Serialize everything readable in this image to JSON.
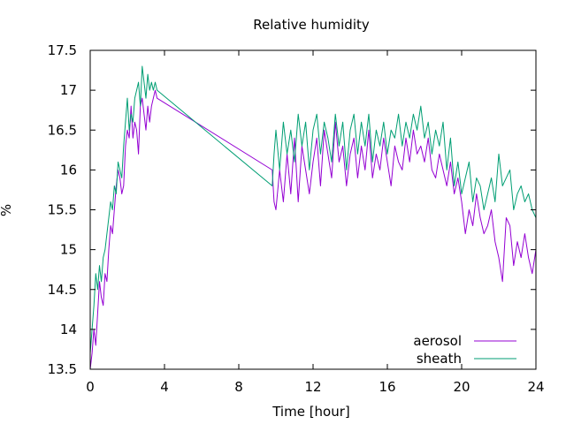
{
  "chart_data": {
    "type": "line",
    "title": "Relative humidity",
    "xlabel": "Time [hour]",
    "ylabel": "%",
    "xlim": [
      0,
      24
    ],
    "ylim": [
      13.5,
      17.5
    ],
    "xticks": [
      0,
      4,
      8,
      12,
      16,
      20,
      24
    ],
    "yticks": [
      13.5,
      14,
      14.5,
      15,
      15.5,
      16,
      16.5,
      17,
      17.5
    ],
    "xtick_labels": [
      "0",
      "4",
      "8",
      "12",
      "16",
      "20",
      "24"
    ],
    "ytick_labels": [
      "13.5",
      "14",
      "14.5",
      "15",
      "15.5",
      "16",
      "16.5",
      "17",
      "17.5"
    ],
    "grid": false,
    "legend_position": "bottom-right",
    "series": [
      {
        "name": "aerosol",
        "color": "#9400d3",
        "x": [
          0.0,
          0.1,
          0.2,
          0.3,
          0.4,
          0.5,
          0.6,
          0.7,
          0.8,
          0.9,
          1.0,
          1.1,
          1.2,
          1.3,
          1.4,
          1.5,
          1.6,
          1.7,
          1.8,
          1.9,
          2.0,
          2.1,
          2.2,
          2.3,
          2.4,
          2.5,
          2.6,
          2.7,
          2.8,
          2.9,
          3.0,
          3.1,
          3.2,
          3.3,
          3.4,
          3.5,
          3.6,
          9.8,
          9.9,
          10.0,
          10.2,
          10.4,
          10.6,
          10.8,
          11.0,
          11.2,
          11.4,
          11.6,
          11.8,
          12.0,
          12.2,
          12.4,
          12.6,
          12.8,
          13.0,
          13.2,
          13.4,
          13.6,
          13.8,
          14.0,
          14.2,
          14.4,
          14.6,
          14.8,
          15.0,
          15.2,
          15.4,
          15.6,
          15.8,
          16.0,
          16.2,
          16.4,
          16.6,
          16.8,
          17.0,
          17.2,
          17.4,
          17.6,
          17.8,
          18.0,
          18.2,
          18.4,
          18.6,
          18.8,
          19.0,
          19.2,
          19.4,
          19.6,
          19.8,
          20.0,
          20.2,
          20.4,
          20.6,
          20.8,
          21.0,
          21.2,
          21.4,
          21.6,
          21.8,
          22.0,
          22.2,
          22.4,
          22.6,
          22.8,
          23.0,
          23.2,
          23.4,
          23.6,
          23.8,
          24.0
        ],
        "y": [
          13.5,
          13.7,
          14.0,
          13.8,
          14.2,
          14.6,
          14.4,
          14.3,
          14.7,
          14.6,
          15.0,
          15.3,
          15.2,
          15.5,
          15.8,
          16.0,
          15.9,
          15.7,
          15.8,
          16.3,
          16.5,
          16.4,
          16.8,
          16.4,
          16.6,
          16.5,
          16.2,
          16.8,
          16.9,
          16.7,
          16.5,
          16.8,
          16.6,
          16.8,
          16.9,
          17.0,
          16.9,
          16.0,
          15.6,
          15.5,
          16.0,
          15.6,
          16.2,
          15.7,
          16.4,
          15.6,
          16.3,
          16.0,
          15.7,
          16.1,
          16.4,
          15.8,
          16.5,
          16.2,
          15.9,
          16.6,
          16.1,
          16.3,
          15.8,
          16.2,
          16.4,
          15.9,
          16.3,
          16.0,
          16.5,
          15.9,
          16.2,
          16.0,
          16.4,
          16.1,
          15.8,
          16.3,
          16.1,
          16.0,
          16.4,
          16.1,
          16.5,
          16.2,
          16.3,
          16.1,
          16.4,
          16.0,
          15.9,
          16.2,
          16.0,
          15.8,
          16.1,
          15.7,
          15.9,
          15.6,
          15.2,
          15.5,
          15.3,
          15.7,
          15.4,
          15.2,
          15.3,
          15.5,
          15.1,
          14.9,
          14.6,
          15.4,
          15.3,
          14.8,
          15.1,
          14.9,
          15.2,
          14.9,
          14.7,
          15.0
        ]
      },
      {
        "name": "sheath",
        "color": "#009e73",
        "x": [
          0.0,
          0.1,
          0.2,
          0.3,
          0.4,
          0.5,
          0.6,
          0.7,
          0.8,
          0.9,
          1.0,
          1.1,
          1.2,
          1.3,
          1.4,
          1.5,
          1.6,
          1.7,
          1.8,
          1.9,
          2.0,
          2.1,
          2.2,
          2.3,
          2.4,
          2.5,
          2.6,
          2.7,
          2.8,
          2.9,
          3.0,
          3.1,
          3.2,
          3.3,
          3.4,
          3.5,
          3.6,
          9.8,
          9.9,
          10.0,
          10.2,
          10.4,
          10.6,
          10.8,
          11.0,
          11.2,
          11.4,
          11.6,
          11.8,
          12.0,
          12.2,
          12.4,
          12.6,
          12.8,
          13.0,
          13.2,
          13.4,
          13.6,
          13.8,
          14.0,
          14.2,
          14.4,
          14.6,
          14.8,
          15.0,
          15.2,
          15.4,
          15.6,
          15.8,
          16.0,
          16.2,
          16.4,
          16.6,
          16.8,
          17.0,
          17.2,
          17.4,
          17.6,
          17.8,
          18.0,
          18.2,
          18.4,
          18.6,
          18.8,
          19.0,
          19.2,
          19.4,
          19.6,
          19.8,
          20.0,
          20.2,
          20.4,
          20.6,
          20.8,
          21.0,
          21.2,
          21.4,
          21.6,
          21.8,
          22.0,
          22.2,
          22.4,
          22.6,
          22.8,
          23.0,
          23.2,
          23.4,
          23.6,
          23.8,
          24.0
        ],
        "y": [
          13.7,
          14.0,
          14.3,
          14.7,
          14.5,
          14.8,
          14.6,
          14.9,
          15.0,
          15.2,
          15.4,
          15.6,
          15.5,
          15.8,
          15.7,
          16.1,
          16.0,
          15.9,
          16.3,
          16.6,
          16.9,
          16.5,
          16.7,
          16.6,
          16.9,
          17.0,
          17.1,
          16.8,
          17.3,
          17.1,
          16.9,
          17.2,
          17.0,
          17.1,
          17.0,
          17.1,
          17.0,
          15.8,
          16.2,
          16.5,
          16.0,
          16.6,
          16.2,
          16.5,
          16.1,
          16.7,
          16.3,
          16.6,
          16.0,
          16.5,
          16.7,
          16.2,
          16.6,
          16.4,
          16.1,
          16.7,
          16.3,
          16.6,
          16.0,
          16.5,
          16.7,
          16.2,
          16.6,
          16.3,
          16.7,
          16.1,
          16.5,
          16.3,
          16.6,
          16.2,
          16.5,
          16.4,
          16.7,
          16.3,
          16.6,
          16.4,
          16.7,
          16.5,
          16.8,
          16.4,
          16.6,
          16.2,
          16.5,
          16.3,
          16.6,
          16.0,
          16.4,
          15.8,
          16.1,
          15.7,
          15.9,
          16.1,
          15.6,
          15.9,
          15.8,
          15.5,
          15.7,
          15.9,
          15.6,
          16.2,
          15.8,
          15.9,
          16.0,
          15.5,
          15.7,
          15.8,
          15.6,
          15.7,
          15.5,
          15.4
        ]
      }
    ]
  }
}
